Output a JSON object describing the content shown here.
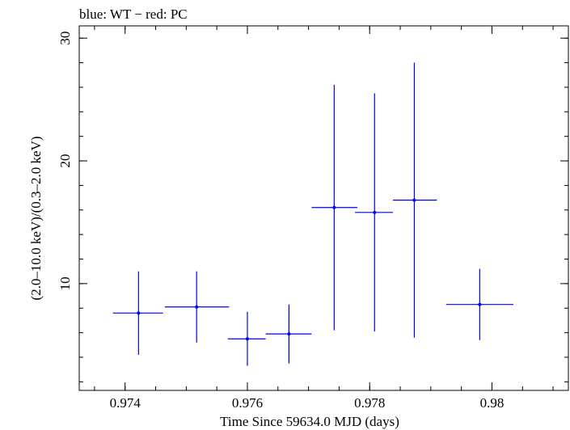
{
  "chart_data": {
    "type": "scatter",
    "title": "blue: WT − red: PC",
    "xlabel": "Time Since 59634.0 MJD (days)",
    "ylabel": "(2.0–10.0 keV)/(0.3–2.0 keV)",
    "xlim": [
      0.97325,
      0.98125
    ],
    "ylim": [
      1.3,
      31.0
    ],
    "x_ticks": [
      0.974,
      0.976,
      0.978,
      0.98
    ],
    "x_tick_labels": [
      "0.974",
      "0.976",
      "0.978",
      "0.98"
    ],
    "y_ticks": [
      10,
      20,
      30
    ],
    "y_tick_labels": [
      "10",
      "20",
      "30"
    ],
    "grid": false,
    "series": [
      {
        "color": "#0000ee",
        "points": [
          {
            "x": 0.97422,
            "xerr_low": 0.00042,
            "xerr_high": 0.0004,
            "y": 7.6,
            "yerr_low": 3.4,
            "yerr_high": 3.4
          },
          {
            "x": 0.97517,
            "xerr_low": 0.00052,
            "xerr_high": 0.00053,
            "y": 8.1,
            "yerr_low": 2.9,
            "yerr_high": 2.9
          },
          {
            "x": 0.976,
            "xerr_low": 0.00032,
            "xerr_high": 0.0003,
            "y": 5.5,
            "yerr_low": 2.2,
            "yerr_high": 2.2
          },
          {
            "x": 0.97668,
            "xerr_low": 0.00038,
            "xerr_high": 0.00037,
            "y": 5.9,
            "yerr_low": 2.4,
            "yerr_high": 2.4
          },
          {
            "x": 0.97742,
            "xerr_low": 0.00037,
            "xerr_high": 0.00038,
            "y": 16.2,
            "yerr_low": 10.0,
            "yerr_high": 10.0
          },
          {
            "x": 0.97808,
            "xerr_low": 0.00032,
            "xerr_high": 0.0003,
            "y": 15.8,
            "yerr_low": 9.7,
            "yerr_high": 9.7
          },
          {
            "x": 0.97873,
            "xerr_low": 0.00035,
            "xerr_high": 0.00037,
            "y": 16.8,
            "yerr_low": 11.2,
            "yerr_high": 11.2
          },
          {
            "x": 0.9798,
            "xerr_low": 0.00055,
            "xerr_high": 0.00055,
            "y": 8.3,
            "yerr_low": 2.9,
            "yerr_high": 2.9
          }
        ]
      }
    ]
  }
}
